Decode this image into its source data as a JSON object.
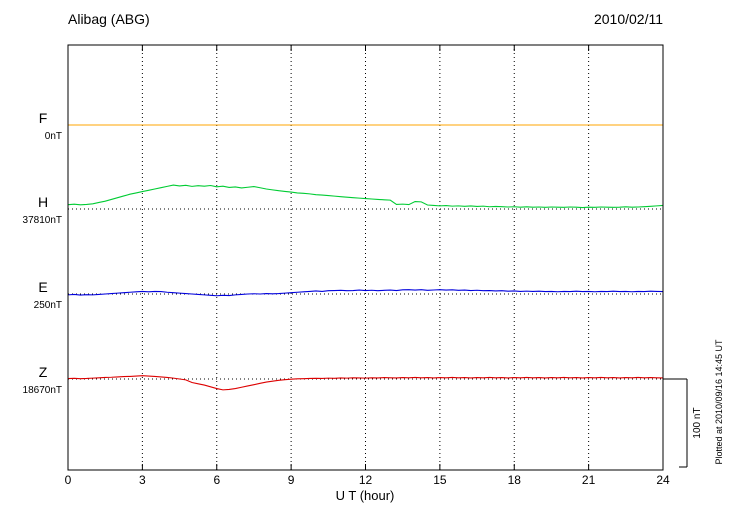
{
  "header": {
    "station": "Alibag (ABG)",
    "date": "2010/02/11"
  },
  "axis": {
    "xlabel": "U T (hour)",
    "x_ticks": [
      "0",
      "3",
      "6",
      "9",
      "12",
      "15",
      "18",
      "21",
      "24"
    ]
  },
  "scale_bar": {
    "label": "100 nT",
    "nT": 100
  },
  "footer_note": "Plotted at 2010/09/16 14:45 UT",
  "chart_data": {
    "type": "line",
    "title": "Alibag (ABG) magnetogram",
    "subtitle": "2010/02/11",
    "xlabel": "U T (hour)",
    "x_range_hours": [
      0,
      24
    ],
    "x_tick_hours": [
      0,
      3,
      6,
      9,
      12,
      15,
      18,
      21,
      24
    ],
    "grid": "dotted vertical at 3h intervals, dotted horizontal at each component baseline",
    "amplitude_scale": "100 nT per scale bar",
    "series": [
      {
        "name": "F",
        "label": "F",
        "baseline_label": "0nT",
        "baseline_nT": 0,
        "color": "#FFA500",
        "values": [
          0,
          0
        ]
      },
      {
        "name": "H",
        "label": "H",
        "baseline_label": "37810nT",
        "baseline_nT": 37810,
        "color": "#00CC33",
        "values": [
          5,
          5.5,
          4.8,
          5.2,
          6,
          7.5,
          9,
          11,
          13,
          15,
          17,
          18.5,
          20,
          21.5,
          23,
          24.5,
          26,
          27.5,
          26.5,
          27.2,
          26,
          26.8,
          26.2,
          27,
          25.5,
          26.2,
          24.8,
          25.4,
          24.2,
          25,
          25.8,
          24.4,
          23,
          22,
          21,
          20.2,
          19.5,
          18.5,
          18,
          17.4,
          16.5,
          16,
          15.4,
          14.8,
          14.2,
          13.6,
          13,
          12.5,
          12,
          11.5,
          11,
          10.6,
          10.2,
          5.2,
          5.6,
          5.1,
          8.6,
          8.2,
          4.6,
          4.1,
          3.6,
          4,
          3.3,
          3.6,
          3.1,
          3.5,
          2.9,
          3.3,
          2.6,
          3,
          2.7,
          2.3,
          2.6,
          2.1,
          2.5,
          2.1,
          2.3,
          1.9,
          2.3,
          2.1,
          1.9,
          2.3,
          2.1,
          1.7,
          2.1,
          1.9,
          2.3,
          2.1,
          1.9,
          2.1,
          2.5,
          2.1,
          2.3,
          2.7,
          3.1,
          3.6,
          4.1
        ]
      },
      {
        "name": "E",
        "label": "E",
        "baseline_label": "250nT",
        "baseline_nT": 250,
        "color": "#0000DD",
        "values": [
          -1,
          -0.5,
          -1.2,
          -0.8,
          -1,
          -0.5,
          0,
          0.5,
          1,
          1.5,
          2,
          2.5,
          3,
          2.5,
          3,
          2.8,
          2,
          1.5,
          1,
          0.5,
          0,
          -0.5,
          -1,
          -1.5,
          -2,
          -1.5,
          -1.8,
          -1,
          -0.5,
          0,
          0.3,
          0,
          0.5,
          0.2,
          0.5,
          1,
          1.5,
          2,
          2.5,
          3,
          3.5,
          3,
          3.8,
          4,
          4.2,
          3.8,
          4,
          4.5,
          4,
          4.3,
          3.8,
          4.2,
          4.5,
          4,
          4.8,
          5,
          4.5,
          5,
          4.2,
          4.6,
          5,
          4.5,
          4.8,
          4.2,
          4.5,
          4,
          4.3,
          3.8,
          4,
          3.5,
          3.8,
          3.2,
          3.5,
          3,
          3.3,
          3,
          3.2,
          2.8,
          3,
          2.6,
          3,
          2.8,
          3.2,
          2.8,
          3,
          2.6,
          3,
          2.8,
          3.2,
          2.8,
          3,
          2.6,
          3,
          2.8,
          3.2,
          3,
          2.8
        ]
      },
      {
        "name": "Z",
        "label": "Z",
        "baseline_label": "18670nT",
        "baseline_nT": 18670,
        "color": "#DD0000",
        "values": [
          0.5,
          0.8,
          0.4,
          0.6,
          1,
          1.4,
          1.8,
          2,
          2.4,
          2.8,
          3,
          3.4,
          3.8,
          3.4,
          3,
          2.4,
          1.8,
          1,
          0,
          -1,
          -4,
          -5.5,
          -7,
          -9,
          -11,
          -12.5,
          -12,
          -11,
          -9.5,
          -8,
          -6.5,
          -5,
          -3.5,
          -2.5,
          -1.5,
          -0.8,
          -0.2,
          0.2,
          0.4,
          0.6,
          0.8,
          0.6,
          1,
          0.8,
          1.2,
          1,
          1.4,
          1.2,
          1,
          1.4,
          1.2,
          1.6,
          1.4,
          1.2,
          1.6,
          1.4,
          1.8,
          1.4,
          1.6,
          1.2,
          1.6,
          1.4,
          1.8,
          1.4,
          1.6,
          1.2,
          1.6,
          1.4,
          1.8,
          1.4,
          1.6,
          1.2,
          1.6,
          1.4,
          1.8,
          1.4,
          1.6,
          1.2,
          1.6,
          1.4,
          1.8,
          1.4,
          1.6,
          1.2,
          1.6,
          1.4,
          1.8,
          1.4,
          1.6,
          1.2,
          1.6,
          1.4,
          1.8,
          1.4,
          1.6,
          1.4,
          1.2
        ]
      }
    ]
  }
}
